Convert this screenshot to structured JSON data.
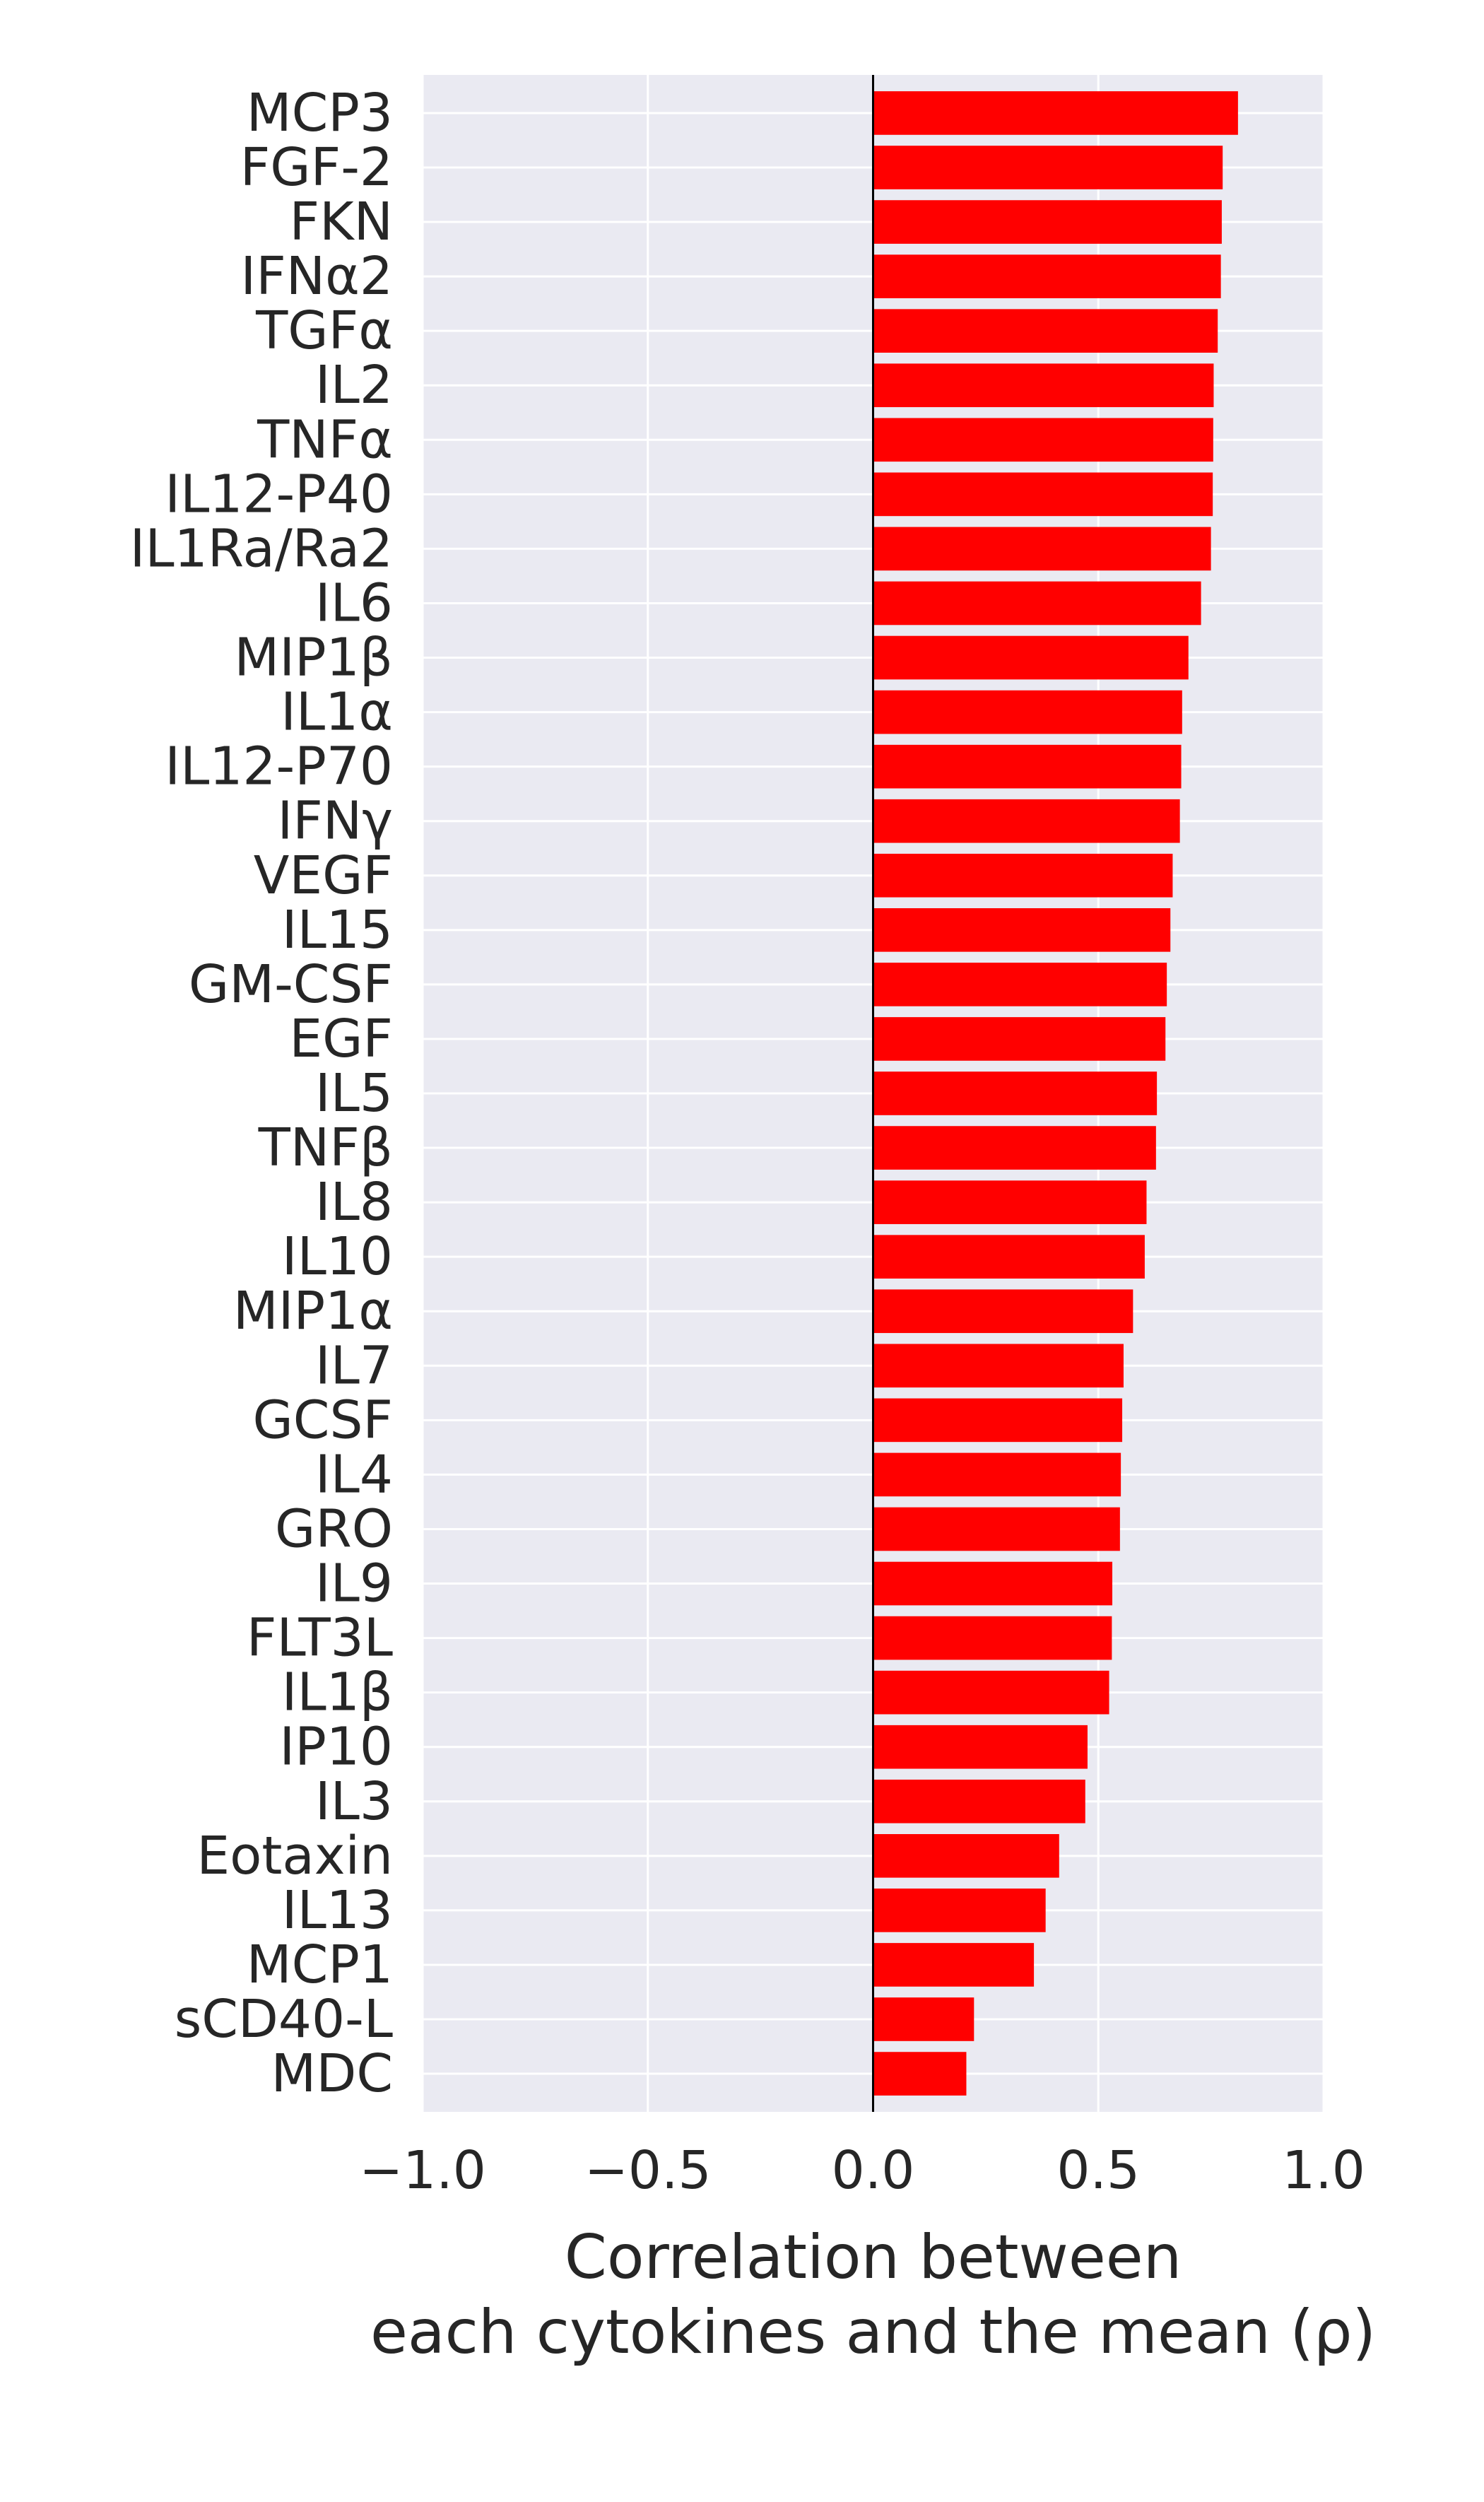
{
  "chart_data": {
    "type": "bar",
    "orientation": "horizontal",
    "categories": [
      "MCP3",
      "FGF-2",
      "FKN",
      "IFNα2",
      "TGFα",
      "IL2",
      "TNFα",
      "IL12-P40",
      "IL1Ra/Ra2",
      "IL6",
      "MIP1β",
      "IL1α",
      "IL12-P70",
      "IFNγ",
      "VEGF",
      "IL15",
      "GM-CSF",
      "EGF",
      "IL5",
      "TNFβ",
      "IL8",
      "IL10",
      "MIP1α",
      "IL7",
      "GCSF",
      "IL4",
      "GRO",
      "IL9",
      "FLT3L",
      "IL1β",
      "IP10",
      "IL3",
      "Eotaxin",
      "IL13",
      "MCP1",
      "sCD40-L",
      "MDC"
    ],
    "values": [
      0.81,
      0.776,
      0.774,
      0.772,
      0.765,
      0.756,
      0.755,
      0.754,
      0.75,
      0.728,
      0.7,
      0.686,
      0.684,
      0.681,
      0.665,
      0.66,
      0.652,
      0.649,
      0.63,
      0.628,
      0.607,
      0.603,
      0.577,
      0.556,
      0.553,
      0.55,
      0.548,
      0.531,
      0.53,
      0.524,
      0.476,
      0.471,
      0.413,
      0.383,
      0.357,
      0.224,
      0.207
    ],
    "xlabel_line1": "Correlation between",
    "xlabel_line2": "each cytokines and the mean (ρ)",
    "xlim": [
      -1.0,
      1.0
    ],
    "xticks": [
      -1.0,
      -0.5,
      0.0,
      0.5,
      1.0
    ],
    "xtick_labels": [
      "−1.0",
      "−0.5",
      "0.0",
      "0.5",
      "1.0"
    ],
    "grid": true,
    "bar_color": "#ff0000",
    "background_color": "#eaeaf2",
    "grid_color": "#ffffff",
    "zero_line_color": "#000000"
  }
}
